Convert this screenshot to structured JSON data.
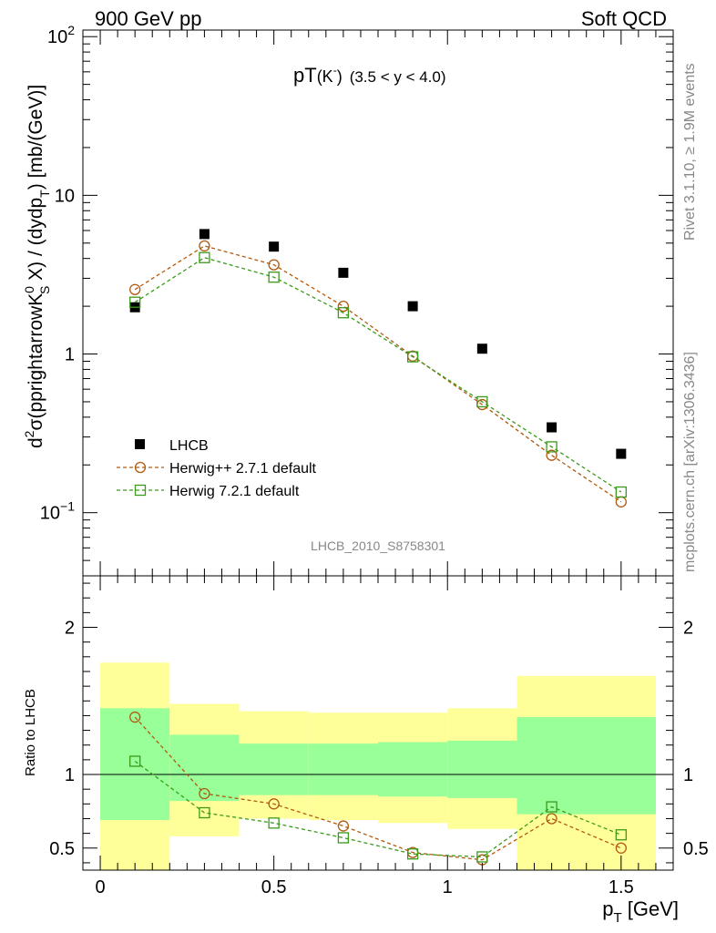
{
  "header": {
    "left": "900 GeV pp",
    "right": "Soft QCD"
  },
  "side": {
    "top": "Rivet 3.1.10, ≥ 1.9M events",
    "bottom": "mcplots.cern.ch [arXiv:1306.3436]"
  },
  "watermark": "LHCB_2010_S8758301",
  "title": {
    "main": "pT",
    "particle": "(K",
    "charge": "-",
    "paren": ")",
    "range": "(3.5 < y < 4.0)"
  },
  "ylabel": {
    "p1": "d",
    "s1": "2",
    "p2": "σ(pprightarrowK",
    "s2": "0",
    "sub2": "S",
    "p3": " X) / (dydp",
    "sub3": "T",
    "p4": ") [mb/(GeV)]"
  },
  "ratio_ylabel": "Ratio to LHCB",
  "xlabel": {
    "main": "p",
    "sub": "T",
    "unit": " [GeV]"
  },
  "colors": {
    "data": "#000000",
    "herwigpp": "#b05a10",
    "herwig7": "#3a9a1a",
    "band_inner": "#99ff99",
    "band_outer": "#ffff99"
  },
  "chart_data": [
    {
      "type": "scatter",
      "title": "pT(K-) (3.5 < y < 4.0)",
      "xlabel": "pT [GeV]",
      "ylabel": "d2σ(pprightarrowK0S X) / (dydpT) [mb/(GeV)]",
      "yscale": "log",
      "xlim": [
        -0.05,
        1.65
      ],
      "ylim": [
        0.04,
        110
      ],
      "legend_position": "bottom-left",
      "y_ticks": [
        {
          "value": 0.1,
          "base": "10",
          "exp": "−1"
        },
        {
          "value": 1,
          "label": "1"
        },
        {
          "value": 10,
          "label": "10"
        },
        {
          "value": 100,
          "base": "10",
          "exp": "2"
        }
      ],
      "series": [
        {
          "name": "LHCB",
          "style": "data",
          "x": [
            0.1,
            0.3,
            0.5,
            0.7,
            0.9,
            1.1,
            1.3,
            1.5
          ],
          "values": [
            1.97,
            5.7,
            4.75,
            3.25,
            2.0,
            1.08,
            0.345,
            0.235
          ]
        },
        {
          "name": "Herwig++ 2.7.1 default",
          "style": "circle",
          "x": [
            0.1,
            0.3,
            0.5,
            0.7,
            0.9,
            1.1,
            1.3,
            1.5
          ],
          "values": [
            2.55,
            4.8,
            3.65,
            2.0,
            0.97,
            0.48,
            0.23,
            0.117
          ]
        },
        {
          "name": "Herwig 7.2.1 default",
          "style": "square",
          "x": [
            0.1,
            0.3,
            0.5,
            0.7,
            0.9,
            1.1,
            1.3,
            1.5
          ],
          "values": [
            2.12,
            4.05,
            3.05,
            1.82,
            0.96,
            0.5,
            0.26,
            0.135
          ]
        }
      ]
    },
    {
      "type": "line",
      "ylabel": "Ratio to LHCB",
      "xlabel": "pT [GeV]",
      "xlim": [
        -0.05,
        1.65
      ],
      "ylim": [
        0.35,
        2.35
      ],
      "x_ticks": [
        {
          "value": 0,
          "label": "0"
        },
        {
          "value": 0.5,
          "label": "0.5"
        },
        {
          "value": 1,
          "label": "1"
        },
        {
          "value": 1.5,
          "label": "1.5"
        }
      ],
      "y_ticks": [
        {
          "value": 0.5,
          "label": "0.5"
        },
        {
          "value": 1,
          "label": "1"
        },
        {
          "value": 2,
          "label": "2"
        }
      ],
      "bands": [
        {
          "x0": 0.0,
          "x1": 0.2,
          "inner": [
            0.69,
            1.45
          ],
          "outer": [
            0.35,
            1.76
          ]
        },
        {
          "x0": 0.2,
          "x1": 0.4,
          "inner": [
            0.82,
            1.27
          ],
          "outer": [
            0.58,
            1.48
          ]
        },
        {
          "x0": 0.4,
          "x1": 0.6,
          "inner": [
            0.86,
            1.21
          ],
          "outer": [
            0.7,
            1.43
          ]
        },
        {
          "x0": 0.6,
          "x1": 0.8,
          "inner": [
            0.86,
            1.21
          ],
          "outer": [
            0.69,
            1.42
          ]
        },
        {
          "x0": 0.8,
          "x1": 1.0,
          "inner": [
            0.85,
            1.22
          ],
          "outer": [
            0.67,
            1.42
          ]
        },
        {
          "x0": 1.0,
          "x1": 1.2,
          "inner": [
            0.84,
            1.23
          ],
          "outer": [
            0.63,
            1.45
          ]
        },
        {
          "x0": 1.2,
          "x1": 1.6,
          "inner": [
            0.73,
            1.39
          ],
          "outer": [
            0.35,
            1.67
          ]
        }
      ],
      "series": [
        {
          "name": "Herwig++ 2.7.1 default",
          "style": "circle",
          "x": [
            0.1,
            0.3,
            0.5,
            0.7,
            0.9,
            1.1,
            1.3,
            1.5
          ],
          "values": [
            1.39,
            0.87,
            0.8,
            0.65,
            0.47,
            0.42,
            0.7,
            0.5
          ]
        },
        {
          "name": "Herwig 7.2.1 default",
          "style": "square",
          "x": [
            0.1,
            0.3,
            0.5,
            0.7,
            0.9,
            1.1,
            1.3,
            1.5
          ],
          "values": [
            1.09,
            0.74,
            0.67,
            0.57,
            0.46,
            0.44,
            0.78,
            0.59
          ]
        }
      ]
    }
  ]
}
